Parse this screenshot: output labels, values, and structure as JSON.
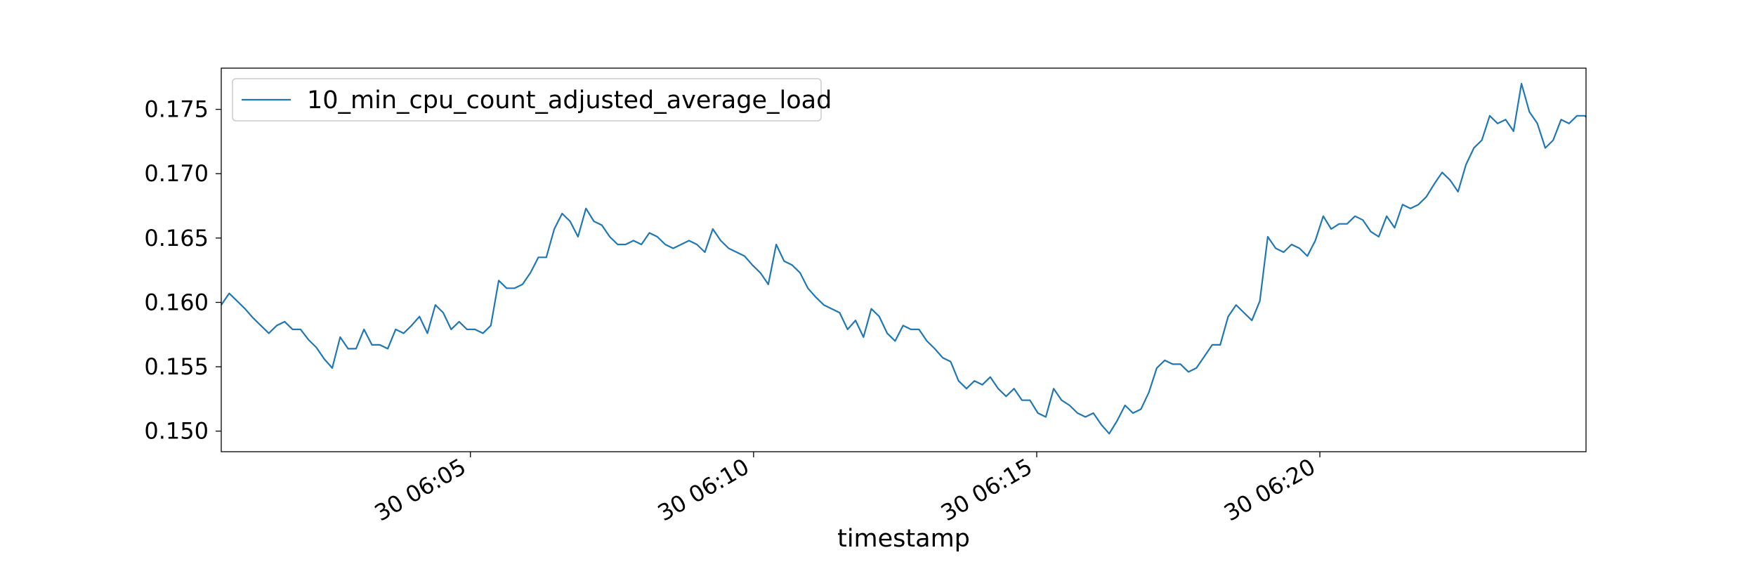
{
  "chart_data": {
    "type": "line",
    "title": "",
    "xlabel": "timestamp",
    "ylabel": "",
    "x_tick_labels": [
      "30 06:05",
      "30 06:10",
      "30 06:15",
      "30 06:20"
    ],
    "x_tick_minutes": [
      5,
      10,
      15,
      20
    ],
    "x_range_minutes": [
      0.6,
      24.7
    ],
    "y_ticks": [
      0.15,
      0.155,
      0.16,
      0.165,
      0.17,
      0.175
    ],
    "y_tick_labels": [
      "0.150",
      "0.155",
      "0.160",
      "0.165",
      "0.170",
      "0.175"
    ],
    "ylim": [
      0.1484,
      0.1782
    ],
    "grid": false,
    "legend_position": "upper-left",
    "colors": {
      "series": "#1f77b4",
      "frame": "#000000",
      "legend_border": "#cccccc"
    },
    "series": [
      {
        "name": "10_min_cpu_count_adjusted_average_load",
        "points": [
          [
            0.6,
            0.1598
          ],
          [
            0.74,
            0.1607
          ],
          [
            0.88,
            0.1601
          ],
          [
            1.02,
            0.1595
          ],
          [
            1.16,
            0.1588
          ],
          [
            1.3,
            0.1582
          ],
          [
            1.44,
            0.1576
          ],
          [
            1.58,
            0.1582
          ],
          [
            1.72,
            0.1585
          ],
          [
            1.86,
            0.1579
          ],
          [
            2.0,
            0.1579
          ],
          [
            2.14,
            0.1571
          ],
          [
            2.28,
            0.1565
          ],
          [
            2.42,
            0.1556
          ],
          [
            2.56,
            0.1549
          ],
          [
            2.7,
            0.1573
          ],
          [
            2.84,
            0.1564
          ],
          [
            2.98,
            0.1564
          ],
          [
            3.12,
            0.1579
          ],
          [
            3.26,
            0.1567
          ],
          [
            3.4,
            0.1567
          ],
          [
            3.54,
            0.1564
          ],
          [
            3.68,
            0.1579
          ],
          [
            3.82,
            0.1576
          ],
          [
            3.96,
            0.1582
          ],
          [
            4.1,
            0.1589
          ],
          [
            4.24,
            0.1576
          ],
          [
            4.38,
            0.1598
          ],
          [
            4.52,
            0.1592
          ],
          [
            4.66,
            0.1579
          ],
          [
            4.8,
            0.1585
          ],
          [
            4.94,
            0.1579
          ],
          [
            5.08,
            0.1579
          ],
          [
            5.22,
            0.1576
          ],
          [
            5.36,
            0.1582
          ],
          [
            5.5,
            0.1617
          ],
          [
            5.64,
            0.1611
          ],
          [
            5.78,
            0.1611
          ],
          [
            5.92,
            0.1614
          ],
          [
            6.06,
            0.1623
          ],
          [
            6.2,
            0.1635
          ],
          [
            6.34,
            0.1635
          ],
          [
            6.48,
            0.1657
          ],
          [
            6.62,
            0.1669
          ],
          [
            6.76,
            0.1663
          ],
          [
            6.9,
            0.1651
          ],
          [
            7.04,
            0.1673
          ],
          [
            7.18,
            0.1663
          ],
          [
            7.32,
            0.166
          ],
          [
            7.46,
            0.1651
          ],
          [
            7.6,
            0.1645
          ],
          [
            7.74,
            0.1645
          ],
          [
            7.88,
            0.1648
          ],
          [
            8.02,
            0.1645
          ],
          [
            8.16,
            0.1654
          ],
          [
            8.3,
            0.1651
          ],
          [
            8.44,
            0.1645
          ],
          [
            8.58,
            0.1642
          ],
          [
            8.72,
            0.1645
          ],
          [
            8.86,
            0.1648
          ],
          [
            9.0,
            0.1645
          ],
          [
            9.14,
            0.1639
          ],
          [
            9.28,
            0.1657
          ],
          [
            9.42,
            0.1648
          ],
          [
            9.56,
            0.1642
          ],
          [
            9.7,
            0.1639
          ],
          [
            9.84,
            0.1636
          ],
          [
            9.98,
            0.1629
          ],
          [
            10.12,
            0.1623
          ],
          [
            10.26,
            0.1614
          ],
          [
            10.4,
            0.1645
          ],
          [
            10.54,
            0.1632
          ],
          [
            10.68,
            0.1629
          ],
          [
            10.82,
            0.1623
          ],
          [
            10.96,
            0.1611
          ],
          [
            11.1,
            0.1604
          ],
          [
            11.24,
            0.1598
          ],
          [
            11.38,
            0.1595
          ],
          [
            11.52,
            0.1592
          ],
          [
            11.66,
            0.1579
          ],
          [
            11.8,
            0.1586
          ],
          [
            11.94,
            0.1573
          ],
          [
            12.08,
            0.1595
          ],
          [
            12.22,
            0.1589
          ],
          [
            12.36,
            0.1576
          ],
          [
            12.5,
            0.157
          ],
          [
            12.64,
            0.1582
          ],
          [
            12.78,
            0.1579
          ],
          [
            12.92,
            0.1579
          ],
          [
            13.06,
            0.157
          ],
          [
            13.2,
            0.1564
          ],
          [
            13.34,
            0.1557
          ],
          [
            13.48,
            0.1554
          ],
          [
            13.62,
            0.1539
          ],
          [
            13.76,
            0.1533
          ],
          [
            13.9,
            0.1539
          ],
          [
            14.04,
            0.1536
          ],
          [
            14.18,
            0.1542
          ],
          [
            14.32,
            0.1533
          ],
          [
            14.46,
            0.1527
          ],
          [
            14.6,
            0.1533
          ],
          [
            14.74,
            0.1524
          ],
          [
            14.88,
            0.1524
          ],
          [
            15.02,
            0.1514
          ],
          [
            15.16,
            0.1511
          ],
          [
            15.3,
            0.1533
          ],
          [
            15.44,
            0.1524
          ],
          [
            15.58,
            0.152
          ],
          [
            15.72,
            0.1514
          ],
          [
            15.86,
            0.1511
          ],
          [
            16.0,
            0.1514
          ],
          [
            16.14,
            0.1505
          ],
          [
            16.28,
            0.1498
          ],
          [
            16.42,
            0.1508
          ],
          [
            16.56,
            0.152
          ],
          [
            16.7,
            0.1514
          ],
          [
            16.84,
            0.1517
          ],
          [
            16.98,
            0.153
          ],
          [
            17.12,
            0.1549
          ],
          [
            17.26,
            0.1555
          ],
          [
            17.4,
            0.1552
          ],
          [
            17.54,
            0.1552
          ],
          [
            17.68,
            0.1546
          ],
          [
            17.82,
            0.1549
          ],
          [
            17.96,
            0.1558
          ],
          [
            18.1,
            0.1567
          ],
          [
            18.24,
            0.1567
          ],
          [
            18.38,
            0.1589
          ],
          [
            18.52,
            0.1598
          ],
          [
            18.66,
            0.1592
          ],
          [
            18.8,
            0.1586
          ],
          [
            18.94,
            0.1601
          ],
          [
            19.08,
            0.1651
          ],
          [
            19.22,
            0.1642
          ],
          [
            19.36,
            0.1639
          ],
          [
            19.5,
            0.1645
          ],
          [
            19.64,
            0.1642
          ],
          [
            19.78,
            0.1636
          ],
          [
            19.92,
            0.1648
          ],
          [
            20.06,
            0.1667
          ],
          [
            20.2,
            0.1657
          ],
          [
            20.34,
            0.1661
          ],
          [
            20.48,
            0.1661
          ],
          [
            20.62,
            0.1667
          ],
          [
            20.76,
            0.1664
          ],
          [
            20.9,
            0.1655
          ],
          [
            21.04,
            0.1651
          ],
          [
            21.18,
            0.1667
          ],
          [
            21.32,
            0.1658
          ],
          [
            21.46,
            0.1676
          ],
          [
            21.6,
            0.1673
          ],
          [
            21.74,
            0.1676
          ],
          [
            21.88,
            0.1682
          ],
          [
            22.02,
            0.1692
          ],
          [
            22.16,
            0.1701
          ],
          [
            22.3,
            0.1695
          ],
          [
            22.44,
            0.1686
          ],
          [
            22.58,
            0.1707
          ],
          [
            22.72,
            0.172
          ],
          [
            22.86,
            0.1726
          ],
          [
            23.0,
            0.1745
          ],
          [
            23.14,
            0.1739
          ],
          [
            23.28,
            0.1742
          ],
          [
            23.42,
            0.1733
          ],
          [
            23.56,
            0.177
          ],
          [
            23.7,
            0.1748
          ],
          [
            23.84,
            0.1739
          ],
          [
            23.98,
            0.172
          ],
          [
            24.12,
            0.1726
          ],
          [
            24.26,
            0.1742
          ],
          [
            24.4,
            0.1739
          ],
          [
            24.54,
            0.1745
          ],
          [
            24.68,
            0.1745
          ],
          [
            24.7,
            0.1744
          ]
        ]
      }
    ]
  }
}
